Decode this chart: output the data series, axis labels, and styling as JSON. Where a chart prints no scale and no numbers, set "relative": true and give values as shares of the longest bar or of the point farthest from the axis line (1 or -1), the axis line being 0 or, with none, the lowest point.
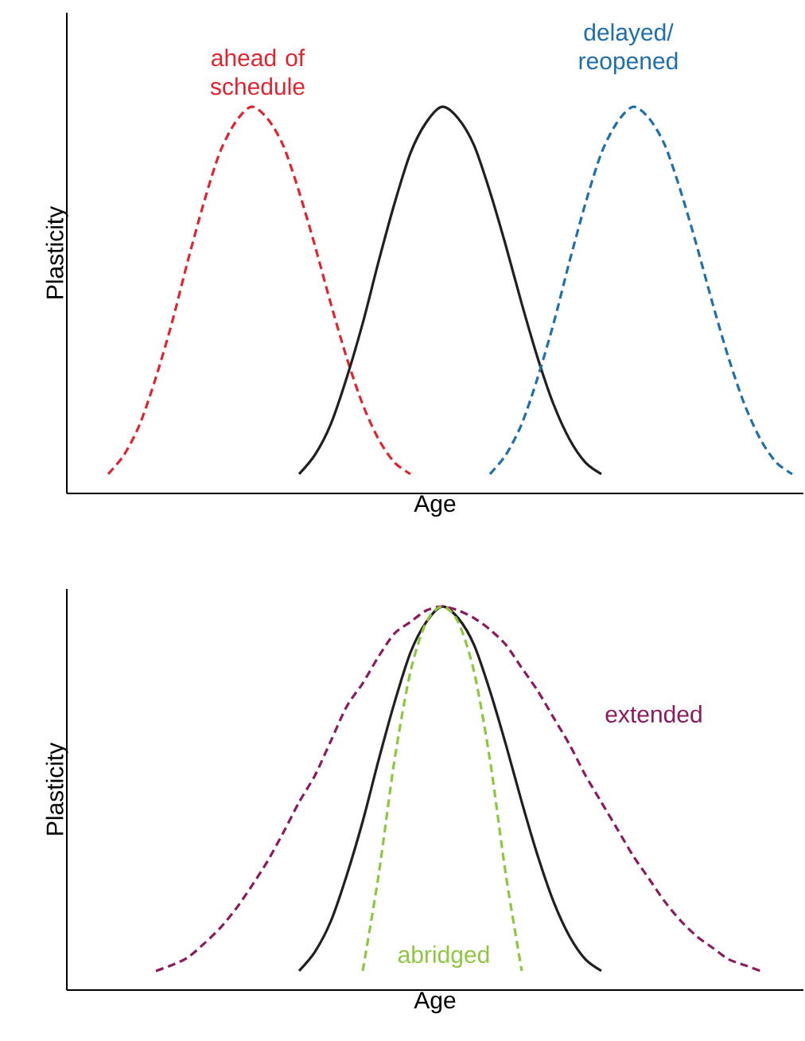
{
  "chart_data": [
    {
      "type": "line",
      "relative": true,
      "tick_labels": false,
      "xlabel": "Age",
      "ylabel": "Plasticity",
      "categories": [
        null,
        null,
        null,
        null,
        null,
        null,
        null,
        null,
        null,
        null,
        null,
        null,
        null,
        null,
        null,
        null,
        null,
        null,
        null,
        null,
        null,
        null,
        null,
        null,
        null,
        null,
        null,
        null,
        null,
        null,
        null,
        null,
        null,
        null,
        null,
        null,
        null,
        null,
        null,
        null,
        null,
        null,
        null,
        null,
        null,
        null
      ],
      "series": [
        {
          "name": "ahead of schedule",
          "color": "#e0242f",
          "line_style": "dashed",
          "values": [
            null,
            null,
            0.05,
            0.1,
            0.18,
            0.3,
            0.44,
            0.6,
            0.75,
            0.88,
            0.96,
            1,
            0.97,
            0.9,
            0.78,
            0.64,
            0.49,
            0.35,
            0.23,
            0.14,
            0.08,
            0.05,
            null,
            null,
            null,
            null,
            null,
            null,
            null,
            null,
            null,
            null,
            null,
            null,
            null,
            null,
            null,
            null,
            null,
            null,
            null,
            null,
            null,
            null,
            null,
            null
          ]
        },
        {
          "color": "#231f20",
          "line_style": "solid",
          "values": [
            null,
            null,
            null,
            null,
            null,
            null,
            null,
            null,
            null,
            null,
            null,
            null,
            null,
            null,
            0.05,
            0.1,
            0.18,
            0.3,
            0.44,
            0.6,
            0.75,
            0.88,
            0.96,
            1,
            0.97,
            0.9,
            0.78,
            0.64,
            0.49,
            0.35,
            0.23,
            0.14,
            0.08,
            0.05,
            null,
            null,
            null,
            null,
            null,
            null,
            null,
            null,
            null,
            null,
            null,
            null
          ]
        },
        {
          "name": "delayed/ reopened",
          "color": "#1f6fad",
          "line_style": "dashed",
          "values": [
            null,
            null,
            null,
            null,
            null,
            null,
            null,
            null,
            null,
            null,
            null,
            null,
            null,
            null,
            null,
            null,
            null,
            null,
            null,
            null,
            null,
            null,
            null,
            null,
            null,
            null,
            0.05,
            0.1,
            0.18,
            0.3,
            0.44,
            0.6,
            0.75,
            0.88,
            0.96,
            1,
            0.97,
            0.9,
            0.78,
            0.64,
            0.49,
            0.35,
            0.23,
            0.14,
            0.08,
            0.05
          ]
        }
      ]
    },
    {
      "type": "line",
      "relative": true,
      "tick_labels": false,
      "xlabel": "Age",
      "ylabel": "Plasticity",
      "categories": [
        null,
        null,
        null,
        null,
        null,
        null,
        null,
        null,
        null,
        null,
        null,
        null,
        null,
        null,
        null,
        null,
        null,
        null,
        null,
        null,
        null,
        null,
        null,
        null,
        null,
        null,
        null,
        null,
        null,
        null,
        null,
        null,
        null,
        null,
        null,
        null,
        null,
        null,
        null,
        null,
        null,
        null,
        null,
        null,
        null,
        null
      ],
      "series": [
        {
          "color": "#231f20",
          "line_style": "solid",
          "values": [
            null,
            null,
            null,
            null,
            null,
            null,
            null,
            null,
            null,
            null,
            null,
            null,
            null,
            null,
            0.05,
            0.1,
            0.18,
            0.3,
            0.44,
            0.6,
            0.75,
            0.88,
            0.96,
            1,
            0.97,
            0.9,
            0.78,
            0.64,
            0.49,
            0.35,
            0.23,
            0.14,
            0.08,
            0.05,
            null,
            null,
            null,
            null,
            null,
            null,
            null,
            null,
            null,
            null,
            null,
            null
          ]
        },
        {
          "name": "extended",
          "color": "#8b1a5e",
          "line_style": "dashed",
          "values": [
            null,
            null,
            null,
            null,
            null,
            0.05,
            0.065,
            0.085,
            0.12,
            0.16,
            0.21,
            0.27,
            0.335,
            0.41,
            0.49,
            0.56,
            0.65,
            0.74,
            0.8,
            0.87,
            0.93,
            0.96,
            0.99,
            1,
            0.99,
            0.97,
            0.94,
            0.9,
            0.84,
            0.78,
            0.71,
            0.64,
            0.56,
            0.49,
            0.42,
            0.35,
            0.29,
            0.23,
            0.18,
            0.14,
            0.11,
            0.08,
            0.065,
            0.05,
            null,
            null
          ]
        },
        {
          "name": "abridged",
          "color": "#8dc63f",
          "line_style": "dashed",
          "values": [
            null,
            null,
            null,
            null,
            null,
            null,
            null,
            null,
            null,
            null,
            null,
            null,
            null,
            null,
            null,
            null,
            null,
            null,
            0.05,
            0.3,
            0.6,
            0.83,
            0.96,
            1,
            0.96,
            0.83,
            0.6,
            0.3,
            0.05,
            null,
            null,
            null,
            null,
            null,
            null,
            null,
            null,
            null,
            null,
            null,
            null,
            null,
            null,
            null,
            null,
            null
          ]
        }
      ]
    }
  ]
}
